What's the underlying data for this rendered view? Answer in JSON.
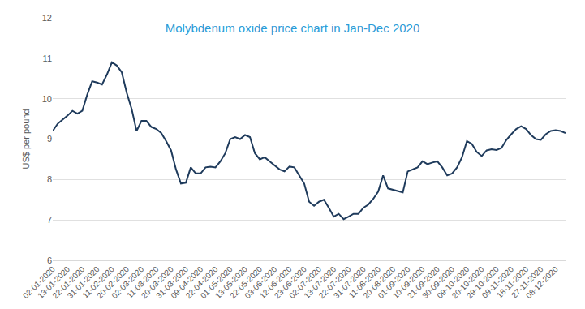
{
  "chart_data": {
    "type": "line",
    "title": "Molybdenum oxide price chart in Jan-Dec 2020",
    "y_label": "US$ per pound",
    "categories": [
      "02-01-2020",
      null,
      null,
      "13-01-2020",
      null,
      null,
      "22-01-2020",
      null,
      null,
      "31-01-2020",
      null,
      null,
      "11-02-2020",
      null,
      null,
      "20-02-2020",
      null,
      null,
      "02-03-2020",
      null,
      null,
      "11-03-2020",
      null,
      null,
      "20-03-2020",
      null,
      null,
      "31-03-2020",
      null,
      null,
      "09-04-2020",
      null,
      null,
      "22-04-2020",
      null,
      null,
      "01-05-2020",
      null,
      null,
      "13-05-2020",
      null,
      null,
      "22-05-2020",
      null,
      null,
      "03-06-2020",
      null,
      null,
      "12-06-2020",
      null,
      null,
      "23-06-2020",
      null,
      null,
      "02-07-2020",
      null,
      null,
      "13-07-2020",
      null,
      null,
      "22-07-2020",
      null,
      null,
      "31-07-2020",
      null,
      null,
      "11-08-2020",
      null,
      null,
      "20-08-2020",
      null,
      null,
      "01-09-2020",
      null,
      null,
      "10-09-2020",
      null,
      null,
      "21-09-2020",
      null,
      null,
      "30-09-2020",
      null,
      null,
      "09-10-2020",
      null,
      null,
      "20-10-2020",
      null,
      null,
      "29-10-2020",
      null,
      null,
      "09-11-2020",
      null,
      null,
      "18-11-2020",
      null,
      null,
      "27-11-2020",
      null,
      null,
      "08-12-2020",
      null,
      null
    ],
    "values": [
      9.2,
      9.38,
      9.48,
      9.58,
      9.7,
      9.63,
      9.7,
      10.1,
      10.43,
      10.4,
      10.35,
      10.6,
      10.9,
      10.82,
      10.65,
      10.15,
      9.75,
      9.2,
      9.45,
      9.45,
      9.3,
      9.25,
      9.15,
      8.95,
      8.72,
      8.25,
      7.9,
      7.92,
      8.3,
      8.15,
      8.15,
      8.3,
      8.32,
      8.3,
      8.45,
      8.65,
      9.0,
      9.05,
      9.0,
      9.1,
      9.05,
      8.65,
      8.5,
      8.55,
      8.45,
      8.35,
      8.25,
      8.2,
      8.32,
      8.3,
      8.1,
      7.9,
      7.45,
      7.35,
      7.45,
      7.5,
      7.3,
      7.08,
      7.15,
      7.02,
      7.08,
      7.15,
      7.15,
      7.3,
      7.38,
      7.52,
      7.7,
      8.1,
      7.78,
      7.75,
      7.72,
      7.68,
      8.2,
      8.25,
      8.3,
      8.45,
      8.38,
      8.42,
      8.45,
      8.3,
      8.1,
      8.15,
      8.3,
      8.55,
      8.95,
      8.88,
      8.68,
      8.58,
      8.72,
      8.75,
      8.73,
      8.78,
      8.98,
      9.12,
      9.25,
      9.32,
      9.25,
      9.1,
      9.0,
      8.98,
      9.12,
      9.2,
      9.22,
      9.2,
      9.15
    ],
    "color": "#1f3b5c",
    "ylim": [
      6,
      12
    ],
    "yticks": [
      6,
      7,
      8,
      9,
      10,
      11,
      12
    ],
    "grid": true
  }
}
